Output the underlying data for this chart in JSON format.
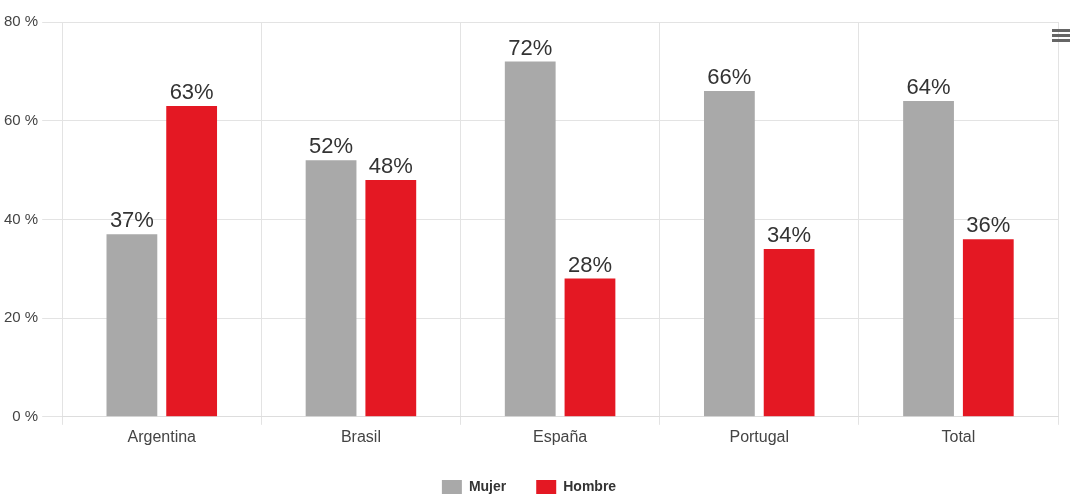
{
  "chart_data": {
    "type": "bar",
    "categories": [
      "Argentina",
      "Brasil",
      "España",
      "Portugal",
      "Total"
    ],
    "series": [
      {
        "name": "Mujer",
        "color": "#a9a9a9",
        "values": [
          37,
          52,
          72,
          66,
          64
        ],
        "value_labels": [
          "37%",
          "52%",
          "72%",
          "66%",
          "64%"
        ]
      },
      {
        "name": "Hombre",
        "color": "#e41823",
        "values": [
          63,
          48,
          28,
          34,
          36
        ],
        "value_labels": [
          "63%",
          "48%",
          "28%",
          "34%",
          "36%"
        ]
      }
    ],
    "ylim": [
      0,
      80
    ],
    "yticks": [
      {
        "value": 0,
        "label": "0 %"
      },
      {
        "value": 20,
        "label": "20 %"
      },
      {
        "value": 40,
        "label": "40 %"
      },
      {
        "value": 60,
        "label": "60 %"
      },
      {
        "value": 80,
        "label": "80 %"
      }
    ],
    "grid": true,
    "legend": "bottom"
  }
}
